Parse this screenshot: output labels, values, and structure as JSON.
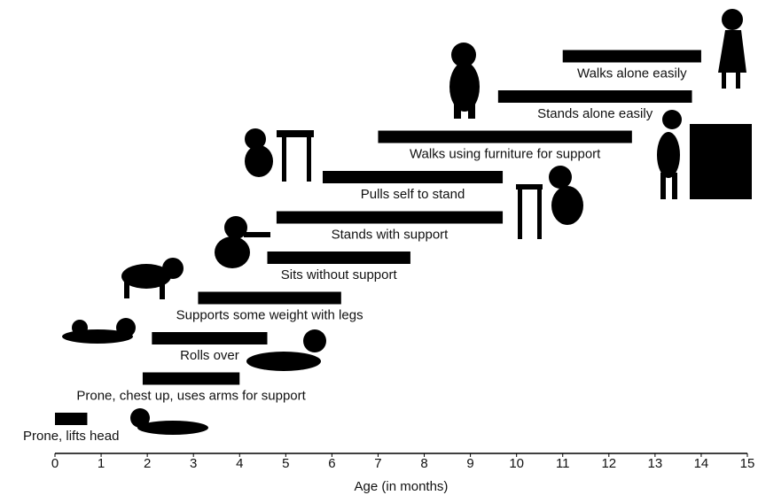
{
  "chart_data": {
    "type": "range_bar",
    "categories": [
      "Prone, lifts head",
      "Prone, chest up, uses arms for support",
      "Rolls over",
      "Supports some weight with legs",
      "Sits without support",
      "Stands with support",
      "Pulls self to stand",
      "Walks using furniture for support",
      "Stands alone easily",
      "Walks alone easily"
    ],
    "start": [
      0,
      1.9,
      2.1,
      3.1,
      4.6,
      4.8,
      5.8,
      7.0,
      9.6,
      11.0
    ],
    "end": [
      0.7,
      4.0,
      4.6,
      6.2,
      7.7,
      9.7,
      9.7,
      12.5,
      13.8,
      14.0
    ],
    "color": "#000000",
    "xlabel": "Age (in months)",
    "xlim": [
      0,
      15
    ],
    "xticks": [
      0,
      1,
      2,
      3,
      4,
      5,
      6,
      7,
      8,
      9,
      10,
      11,
      12,
      13,
      14,
      15
    ]
  }
}
